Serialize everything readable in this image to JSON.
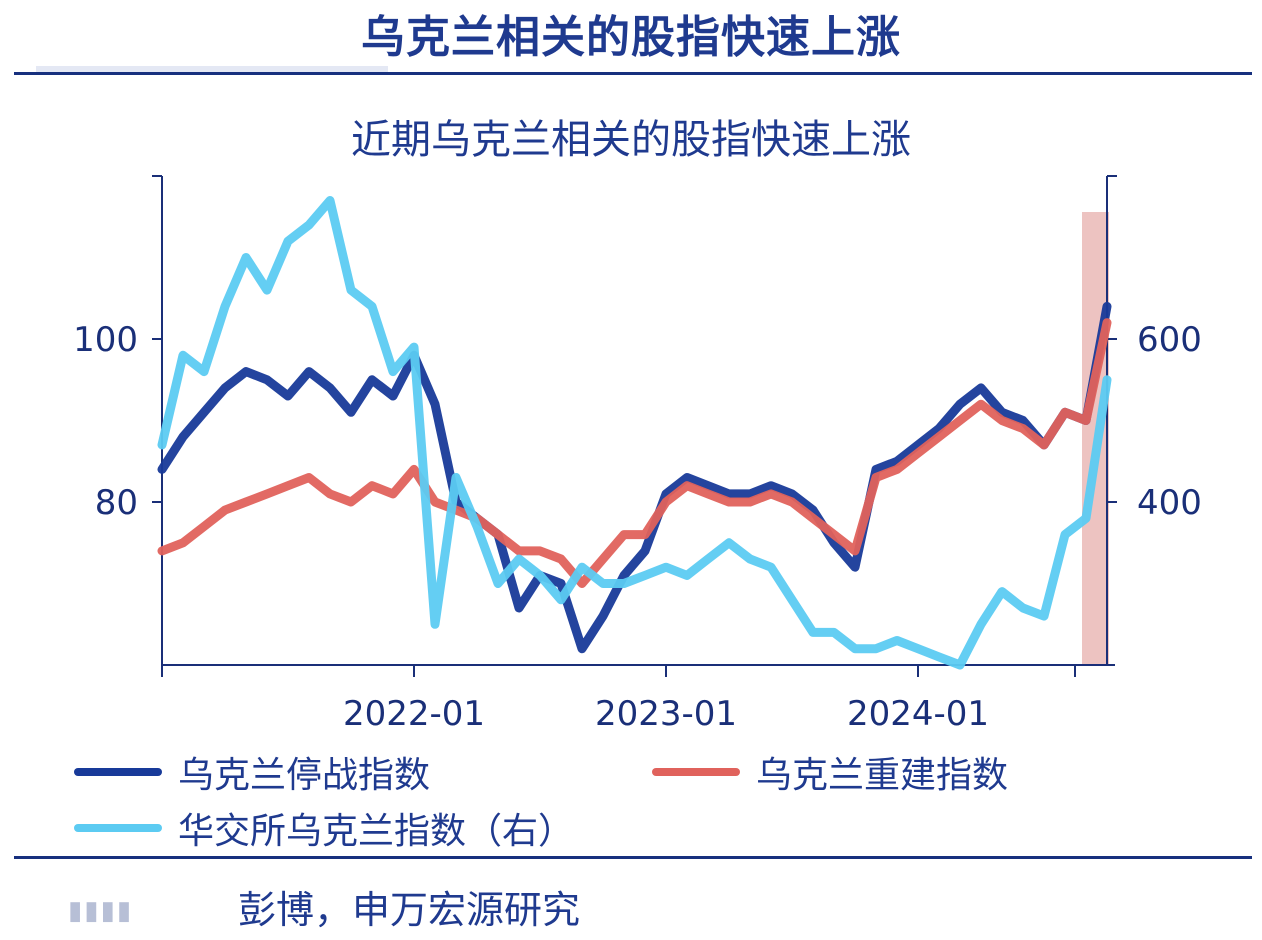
{
  "header": {
    "title": "乌克兰相关的股指快速上涨"
  },
  "footer": {
    "source_text": "彭博，申万宏源研究"
  },
  "chart_data": {
    "type": "line",
    "title": "近期乌克兰相关的股指快速上涨",
    "xlabel": "",
    "ylabel": "",
    "x_ticks": [
      "2022-01",
      "2023-01",
      "2024-01"
    ],
    "y_left": {
      "ticks": [
        80,
        100
      ],
      "range": [
        60,
        120
      ]
    },
    "y_right": {
      "ticks": [
        400,
        600
      ],
      "range": [
        200,
        800
      ]
    },
    "highlight_period": {
      "from": "2024-09",
      "to": "2024-10"
    },
    "legend_position": "bottom",
    "colors": {
      "axis": "#1a2f78",
      "highlight": "#e6a9a6"
    },
    "series": [
      {
        "name": "乌克兰停战指数",
        "axis": "left",
        "color": "#183a99",
        "x": [
          "2021-01",
          "2021-02",
          "2021-03",
          "2021-04",
          "2021-05",
          "2021-06",
          "2021-07",
          "2021-08",
          "2021-09",
          "2021-10",
          "2021-11",
          "2021-12",
          "2022-01",
          "2022-02",
          "2022-03",
          "2022-04",
          "2022-05",
          "2022-06",
          "2022-07",
          "2022-08",
          "2022-09",
          "2022-10",
          "2022-11",
          "2022-12",
          "2023-01",
          "2023-02",
          "2023-03",
          "2023-04",
          "2023-05",
          "2023-06",
          "2023-07",
          "2023-08",
          "2023-09",
          "2023-10",
          "2023-11",
          "2023-12",
          "2024-01",
          "2024-02",
          "2024-03",
          "2024-04",
          "2024-05",
          "2024-06",
          "2024-07",
          "2024-08",
          "2024-09",
          "2024-10"
        ],
        "values": [
          84,
          88,
          91,
          94,
          96,
          95,
          93,
          96,
          94,
          91,
          95,
          93,
          98,
          92,
          80,
          78,
          76,
          67,
          71,
          70,
          62,
          66,
          71,
          74,
          81,
          83,
          82,
          81,
          81,
          82,
          81,
          79,
          75,
          72,
          84,
          85,
          87,
          89,
          92,
          94,
          91,
          90,
          87,
          91,
          90,
          104
        ]
      },
      {
        "name": "乌克兰重建指数",
        "axis": "left",
        "color": "#e0625c",
        "x": [
          "2021-01",
          "2021-02",
          "2021-03",
          "2021-04",
          "2021-05",
          "2021-06",
          "2021-07",
          "2021-08",
          "2021-09",
          "2021-10",
          "2021-11",
          "2021-12",
          "2022-01",
          "2022-02",
          "2022-03",
          "2022-04",
          "2022-05",
          "2022-06",
          "2022-07",
          "2022-08",
          "2022-09",
          "2022-10",
          "2022-11",
          "2022-12",
          "2023-01",
          "2023-02",
          "2023-03",
          "2023-04",
          "2023-05",
          "2023-06",
          "2023-07",
          "2023-08",
          "2023-09",
          "2023-10",
          "2023-11",
          "2023-12",
          "2024-01",
          "2024-02",
          "2024-03",
          "2024-04",
          "2024-05",
          "2024-06",
          "2024-07",
          "2024-08",
          "2024-09",
          "2024-10"
        ],
        "values": [
          74,
          75,
          77,
          79,
          80,
          81,
          82,
          83,
          81,
          80,
          82,
          81,
          84,
          80,
          79,
          78,
          76,
          74,
          74,
          73,
          70,
          73,
          76,
          76,
          80,
          82,
          81,
          80,
          80,
          81,
          80,
          78,
          76,
          74,
          83,
          84,
          86,
          88,
          90,
          92,
          90,
          89,
          87,
          91,
          90,
          102
        ]
      },
      {
        "name": "华交所乌克兰指数（右）",
        "axis": "right",
        "color": "#5ccbf2",
        "x": [
          "2021-01",
          "2021-02",
          "2021-03",
          "2021-04",
          "2021-05",
          "2021-06",
          "2021-07",
          "2021-08",
          "2021-09",
          "2021-10",
          "2021-11",
          "2021-12",
          "2022-01",
          "2022-02",
          "2022-03",
          "2022-04",
          "2022-05",
          "2022-06",
          "2022-07",
          "2022-08",
          "2022-09",
          "2022-10",
          "2022-11",
          "2022-12",
          "2023-01",
          "2023-02",
          "2023-03",
          "2023-04",
          "2023-05",
          "2023-06",
          "2023-07",
          "2023-08",
          "2023-09",
          "2023-10",
          "2023-11",
          "2023-12",
          "2024-01",
          "2024-02",
          "2024-03",
          "2024-04",
          "2024-05",
          "2024-06",
          "2024-07",
          "2024-08",
          "2024-09",
          "2024-10"
        ],
        "values": [
          470,
          580,
          560,
          640,
          700,
          660,
          720,
          740,
          770,
          660,
          640,
          560,
          590,
          250,
          430,
          370,
          300,
          330,
          310,
          280,
          320,
          300,
          300,
          310,
          320,
          310,
          330,
          350,
          330,
          320,
          280,
          240,
          240,
          220,
          220,
          230,
          220,
          210,
          200,
          250,
          290,
          270,
          260,
          360,
          380,
          550
        ]
      }
    ]
  }
}
